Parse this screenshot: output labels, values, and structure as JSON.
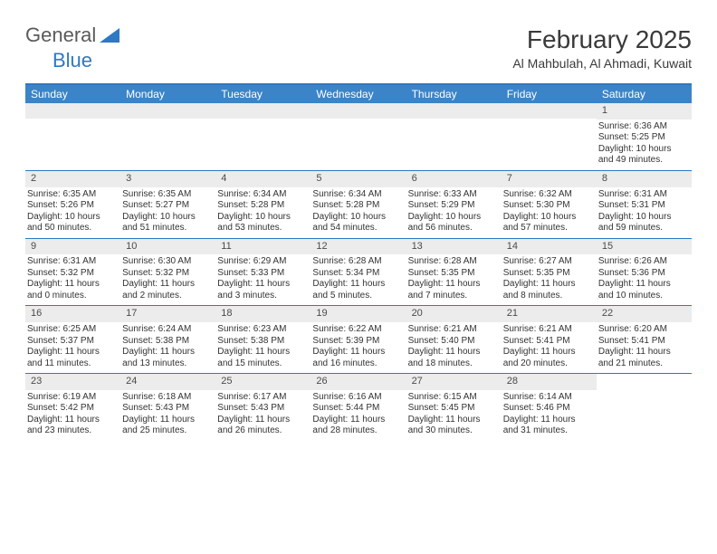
{
  "logo": {
    "word1": "General",
    "word2": "Blue"
  },
  "title": "February 2025",
  "location": "Al Mahbulah, Al Ahmadi, Kuwait",
  "day_headers": [
    "Sunday",
    "Monday",
    "Tuesday",
    "Wednesday",
    "Thursday",
    "Friday",
    "Saturday"
  ],
  "colors": {
    "header_bg": "#3b84c8",
    "header_text": "#ffffff",
    "border": "#2f78c3",
    "daynum_bg": "#ececec",
    "text": "#333333"
  },
  "weeks": [
    [
      {
        "empty": true
      },
      {
        "empty": true
      },
      {
        "empty": true
      },
      {
        "empty": true
      },
      {
        "empty": true
      },
      {
        "empty": true
      },
      {
        "n": "1",
        "sunrise": "Sunrise: 6:36 AM",
        "sunset": "Sunset: 5:25 PM",
        "daylight": "Daylight: 10 hours and 49 minutes."
      }
    ],
    [
      {
        "n": "2",
        "sunrise": "Sunrise: 6:35 AM",
        "sunset": "Sunset: 5:26 PM",
        "daylight": "Daylight: 10 hours and 50 minutes."
      },
      {
        "n": "3",
        "sunrise": "Sunrise: 6:35 AM",
        "sunset": "Sunset: 5:27 PM",
        "daylight": "Daylight: 10 hours and 51 minutes."
      },
      {
        "n": "4",
        "sunrise": "Sunrise: 6:34 AM",
        "sunset": "Sunset: 5:28 PM",
        "daylight": "Daylight: 10 hours and 53 minutes."
      },
      {
        "n": "5",
        "sunrise": "Sunrise: 6:34 AM",
        "sunset": "Sunset: 5:28 PM",
        "daylight": "Daylight: 10 hours and 54 minutes."
      },
      {
        "n": "6",
        "sunrise": "Sunrise: 6:33 AM",
        "sunset": "Sunset: 5:29 PM",
        "daylight": "Daylight: 10 hours and 56 minutes."
      },
      {
        "n": "7",
        "sunrise": "Sunrise: 6:32 AM",
        "sunset": "Sunset: 5:30 PM",
        "daylight": "Daylight: 10 hours and 57 minutes."
      },
      {
        "n": "8",
        "sunrise": "Sunrise: 6:31 AM",
        "sunset": "Sunset: 5:31 PM",
        "daylight": "Daylight: 10 hours and 59 minutes."
      }
    ],
    [
      {
        "n": "9",
        "sunrise": "Sunrise: 6:31 AM",
        "sunset": "Sunset: 5:32 PM",
        "daylight": "Daylight: 11 hours and 0 minutes."
      },
      {
        "n": "10",
        "sunrise": "Sunrise: 6:30 AM",
        "sunset": "Sunset: 5:32 PM",
        "daylight": "Daylight: 11 hours and 2 minutes."
      },
      {
        "n": "11",
        "sunrise": "Sunrise: 6:29 AM",
        "sunset": "Sunset: 5:33 PM",
        "daylight": "Daylight: 11 hours and 3 minutes."
      },
      {
        "n": "12",
        "sunrise": "Sunrise: 6:28 AM",
        "sunset": "Sunset: 5:34 PM",
        "daylight": "Daylight: 11 hours and 5 minutes."
      },
      {
        "n": "13",
        "sunrise": "Sunrise: 6:28 AM",
        "sunset": "Sunset: 5:35 PM",
        "daylight": "Daylight: 11 hours and 7 minutes."
      },
      {
        "n": "14",
        "sunrise": "Sunrise: 6:27 AM",
        "sunset": "Sunset: 5:35 PM",
        "daylight": "Daylight: 11 hours and 8 minutes."
      },
      {
        "n": "15",
        "sunrise": "Sunrise: 6:26 AM",
        "sunset": "Sunset: 5:36 PM",
        "daylight": "Daylight: 11 hours and 10 minutes."
      }
    ],
    [
      {
        "n": "16",
        "sunrise": "Sunrise: 6:25 AM",
        "sunset": "Sunset: 5:37 PM",
        "daylight": "Daylight: 11 hours and 11 minutes."
      },
      {
        "n": "17",
        "sunrise": "Sunrise: 6:24 AM",
        "sunset": "Sunset: 5:38 PM",
        "daylight": "Daylight: 11 hours and 13 minutes."
      },
      {
        "n": "18",
        "sunrise": "Sunrise: 6:23 AM",
        "sunset": "Sunset: 5:38 PM",
        "daylight": "Daylight: 11 hours and 15 minutes."
      },
      {
        "n": "19",
        "sunrise": "Sunrise: 6:22 AM",
        "sunset": "Sunset: 5:39 PM",
        "daylight": "Daylight: 11 hours and 16 minutes."
      },
      {
        "n": "20",
        "sunrise": "Sunrise: 6:21 AM",
        "sunset": "Sunset: 5:40 PM",
        "daylight": "Daylight: 11 hours and 18 minutes."
      },
      {
        "n": "21",
        "sunrise": "Sunrise: 6:21 AM",
        "sunset": "Sunset: 5:41 PM",
        "daylight": "Daylight: 11 hours and 20 minutes."
      },
      {
        "n": "22",
        "sunrise": "Sunrise: 6:20 AM",
        "sunset": "Sunset: 5:41 PM",
        "daylight": "Daylight: 11 hours and 21 minutes."
      }
    ],
    [
      {
        "n": "23",
        "sunrise": "Sunrise: 6:19 AM",
        "sunset": "Sunset: 5:42 PM",
        "daylight": "Daylight: 11 hours and 23 minutes."
      },
      {
        "n": "24",
        "sunrise": "Sunrise: 6:18 AM",
        "sunset": "Sunset: 5:43 PM",
        "daylight": "Daylight: 11 hours and 25 minutes."
      },
      {
        "n": "25",
        "sunrise": "Sunrise: 6:17 AM",
        "sunset": "Sunset: 5:43 PM",
        "daylight": "Daylight: 11 hours and 26 minutes."
      },
      {
        "n": "26",
        "sunrise": "Sunrise: 6:16 AM",
        "sunset": "Sunset: 5:44 PM",
        "daylight": "Daylight: 11 hours and 28 minutes."
      },
      {
        "n": "27",
        "sunrise": "Sunrise: 6:15 AM",
        "sunset": "Sunset: 5:45 PM",
        "daylight": "Daylight: 11 hours and 30 minutes."
      },
      {
        "n": "28",
        "sunrise": "Sunrise: 6:14 AM",
        "sunset": "Sunset: 5:46 PM",
        "daylight": "Daylight: 11 hours and 31 minutes."
      },
      {
        "empty": true,
        "noBg": true
      }
    ]
  ]
}
